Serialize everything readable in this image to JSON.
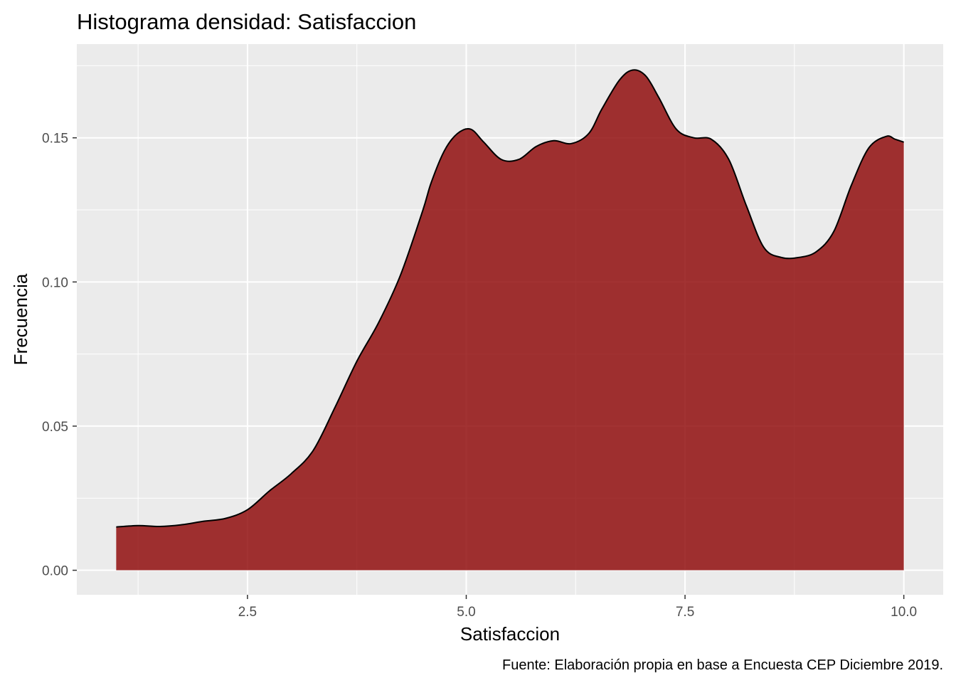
{
  "chart_data": {
    "type": "area",
    "title": "Histograma densidad: Satisfaccion",
    "xlabel": "Satisfaccion",
    "ylabel": "Frecuencia",
    "caption": "Fuente: Elaboración propia en base a Encuesta CEP Diciembre 2019.",
    "xlim": [
      0.55,
      10.45
    ],
    "ylim": [
      -0.0085,
      0.1825
    ],
    "x_ticks": [
      2.5,
      5.0,
      7.5,
      10.0
    ],
    "x_tick_labels": [
      "2.5",
      "5.0",
      "7.5",
      "10.0"
    ],
    "y_ticks": [
      0.0,
      0.05,
      0.1,
      0.15
    ],
    "y_tick_labels": [
      "0.00",
      "0.05",
      "0.10",
      "0.15"
    ],
    "grid": true,
    "fill_color": "#8B0000",
    "fill_opacity": 0.8,
    "line_color": "#000000",
    "panel_background": "#EBEBEB",
    "grid_color": "#FFFFFF",
    "series": [
      {
        "x": [
          1.0,
          1.25,
          1.5,
          1.75,
          2.0,
          2.25,
          2.5,
          2.75,
          3.0,
          3.25,
          3.5,
          3.75,
          4.0,
          4.25,
          4.5,
          4.6,
          4.75,
          4.9,
          5.05,
          5.2,
          5.4,
          5.6,
          5.8,
          6.0,
          6.2,
          6.4,
          6.55,
          6.75,
          6.9,
          7.05,
          7.2,
          7.4,
          7.6,
          7.8,
          8.0,
          8.2,
          8.4,
          8.6,
          8.8,
          9.0,
          9.2,
          9.4,
          9.6,
          9.8,
          9.9,
          10.0
        ],
        "y": [
          0.015,
          0.0155,
          0.0152,
          0.0158,
          0.017,
          0.018,
          0.021,
          0.0275,
          0.0335,
          0.0415,
          0.0565,
          0.0725,
          0.086,
          0.1025,
          0.1245,
          0.1345,
          0.1455,
          0.1515,
          0.153,
          0.1485,
          0.1425,
          0.1425,
          0.147,
          0.149,
          0.148,
          0.1515,
          0.16,
          0.17,
          0.1735,
          0.1715,
          0.164,
          0.153,
          0.15,
          0.1495,
          0.1425,
          0.1265,
          0.112,
          0.1085,
          0.1085,
          0.1105,
          0.1175,
          0.1335,
          0.1465,
          0.1505,
          0.1495,
          0.1485
        ]
      }
    ]
  }
}
